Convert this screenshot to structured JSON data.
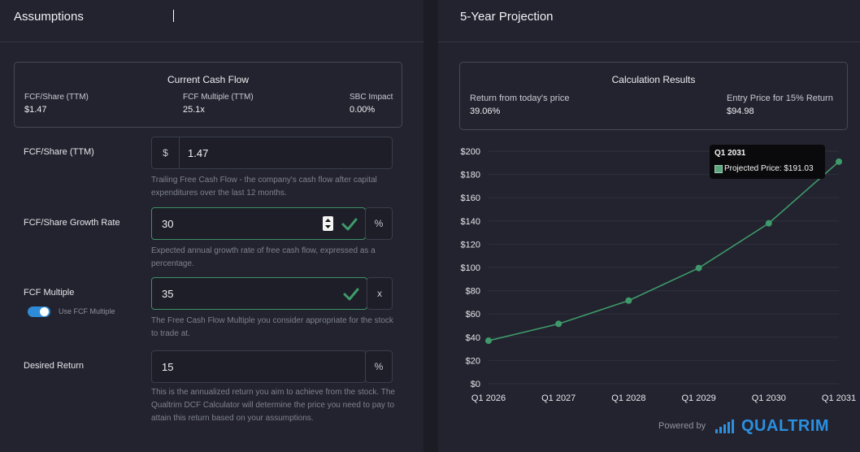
{
  "assumptions": {
    "title": "Assumptions",
    "current_cash_flow": {
      "title": "Current Cash Flow",
      "stats": [
        {
          "label": "FCF/Share (TTM)",
          "value": "$1.47"
        },
        {
          "label": "FCF Multiple (TTM)",
          "value": "25.1x"
        },
        {
          "label": "SBC Impact",
          "value": "0.00%"
        }
      ]
    },
    "fields": {
      "fcf_share": {
        "label": "FCF/Share (TTM)",
        "prefix": "$",
        "value": "1.47",
        "help": "Trailing Free Cash Flow - the company's cash flow after capital expenditures over the last 12 months."
      },
      "growth_rate": {
        "label": "FCF/Share Growth Rate",
        "value": "30",
        "suffix": "%",
        "help": "Expected annual growth rate of free cash flow, expressed as a percentage."
      },
      "fcf_multiple": {
        "label": "FCF Multiple",
        "value": "35",
        "suffix": "x",
        "toggle_label": "Use FCF Multiple",
        "toggle_on": true,
        "help": "The Free Cash Flow Multiple you consider appropriate for the stock to trade at."
      },
      "desired_return": {
        "label": "Desired Return",
        "value": "15",
        "suffix": "%",
        "help": "This is the annualized return you aim to achieve from the stock. The Qualtrim DCF Calculator will determine the price you need to pay to attain this return based on your assumptions."
      }
    }
  },
  "projection": {
    "title": "5-Year Projection",
    "results": {
      "title": "Calculation Results",
      "return_label": "Return from today's price",
      "return_value": "39.06%",
      "entry_label": "Entry Price for 15% Return",
      "entry_value": "$94.98"
    },
    "tooltip": {
      "title": "Q1 2031",
      "text": "Projected Price: $191.03"
    },
    "powered_by": "Powered by",
    "brand": "QUALTRIM"
  },
  "colors": {
    "accent_green": "#3f9a6b",
    "toggle_blue": "#2e8bd8",
    "brand_blue": "#2b8fe0"
  },
  "chart_data": {
    "type": "line",
    "title": "5-Year Projection",
    "series": [
      {
        "name": "Projected Price",
        "values": [
          37,
          51.5,
          71.5,
          99.5,
          138,
          191.03
        ]
      }
    ],
    "categories": [
      "Q1 2026",
      "Q1 2027",
      "Q1 2028",
      "Q1 2029",
      "Q1 2030",
      "Q1 2031"
    ],
    "yticks": [
      "$0",
      "$20",
      "$40",
      "$60",
      "$80",
      "$100",
      "$120",
      "$140",
      "$160",
      "$180",
      "$200"
    ],
    "ylim": [
      0,
      200
    ],
    "grid": true,
    "xlabel": "",
    "ylabel": ""
  }
}
